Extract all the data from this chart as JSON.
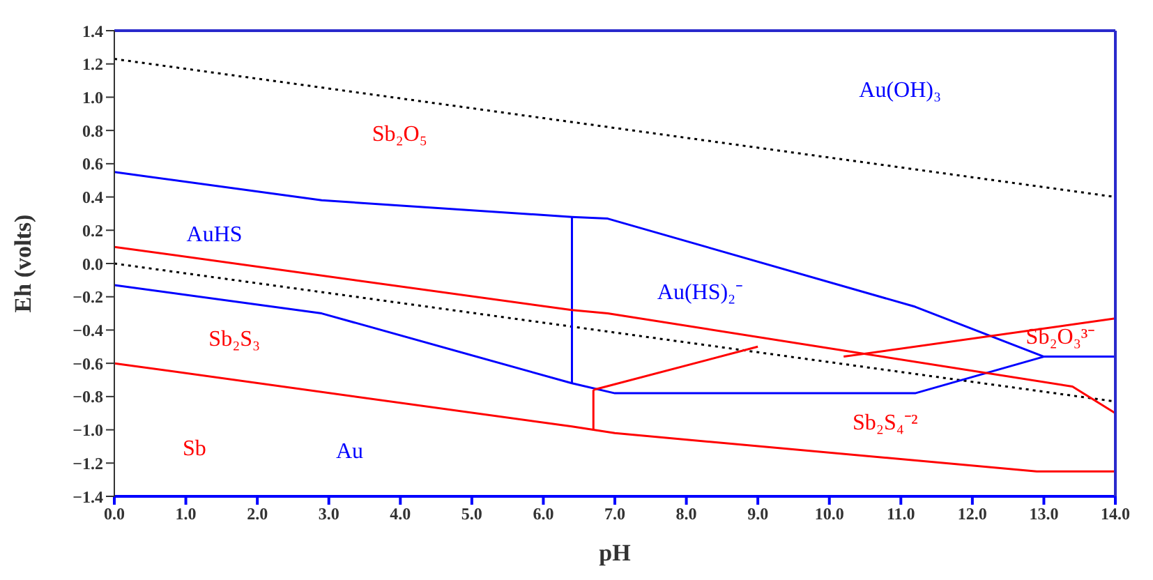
{
  "chart_data": {
    "type": "line",
    "xlabel": "pH",
    "ylabel": "Eh (volts)",
    "xlim": [
      0,
      14
    ],
    "ylim": [
      -1.4,
      1.4
    ],
    "xticks": [
      {
        "value": 0,
        "label": "0.0"
      },
      {
        "value": 1,
        "label": "1.0"
      },
      {
        "value": 2,
        "label": "2.0"
      },
      {
        "value": 3,
        "label": "3.0"
      },
      {
        "value": 4,
        "label": "4.0"
      },
      {
        "value": 5,
        "label": "5.0"
      },
      {
        "value": 6,
        "label": "6.0"
      },
      {
        "value": 7,
        "label": "7.0"
      },
      {
        "value": 8,
        "label": "8.0"
      },
      {
        "value": 9,
        "label": "9.0"
      },
      {
        "value": 10,
        "label": "10.0"
      },
      {
        "value": 11,
        "label": "11.0"
      },
      {
        "value": 12,
        "label": "12.0"
      },
      {
        "value": 13,
        "label": "13.0"
      },
      {
        "value": 14,
        "label": "14.0"
      }
    ],
    "yticks": [
      {
        "value": -1.4,
        "label": "−1.4"
      },
      {
        "value": -1.2,
        "label": "−1.2"
      },
      {
        "value": -1,
        "label": "−1.0"
      },
      {
        "value": -0.8,
        "label": "−0.8"
      },
      {
        "value": -0.6,
        "label": "−0.6"
      },
      {
        "value": -0.4,
        "label": "−0.4"
      },
      {
        "value": -0.2,
        "label": "−0.2"
      },
      {
        "value": 0,
        "label": "0.0"
      },
      {
        "value": 0.2,
        "label": "0.2"
      },
      {
        "value": 0.4,
        "label": "0.4"
      },
      {
        "value": 0.6,
        "label": "0.6"
      },
      {
        "value": 0.8,
        "label": "0.8"
      },
      {
        "value": 1,
        "label": "1.0"
      },
      {
        "value": 1.2,
        "label": "1.2"
      },
      {
        "value": 1.4,
        "label": "1.4"
      }
    ],
    "marker": "none",
    "series": [
      {
        "color": "#000000",
        "line_style": "dotted",
        "x": [
          0,
          14
        ],
        "values": [
          1.23,
          0.4
        ]
      },
      {
        "color": "#000000",
        "line_style": "dotted",
        "x": [
          0,
          14
        ],
        "values": [
          0,
          -0.83
        ]
      },
      {
        "color": "#0000ff",
        "x": [
          0,
          2.9,
          6.4,
          6.9,
          11.2,
          13,
          14
        ],
        "values": [
          0.55,
          0.38,
          0.28,
          0.27,
          -0.26,
          -0.56,
          -0.56
        ]
      },
      {
        "color": "#0000ff",
        "x": [
          6.4,
          6.4
        ],
        "values": [
          0.28,
          -0.72
        ]
      },
      {
        "color": "#0000ff",
        "x": [
          0,
          2.9,
          6.4,
          7,
          11.2,
          13
        ],
        "values": [
          -0.13,
          -0.3,
          -0.72,
          -0.78,
          -0.78,
          -0.56
        ]
      },
      {
        "color": "#ff0000",
        "x": [
          0,
          6.4,
          6.9,
          13.4,
          14
        ],
        "values": [
          0.1,
          -0.28,
          -0.3,
          -0.74,
          -0.9
        ]
      },
      {
        "color": "#ff0000",
        "x": [
          6.7,
          9
        ],
        "values": [
          -0.76,
          -0.5
        ]
      },
      {
        "color": "#ff0000",
        "x": [
          10.2,
          14
        ],
        "values": [
          -0.56,
          -0.33
        ]
      },
      {
        "color": "#ff0000",
        "x": [
          6.7,
          6.7
        ],
        "values": [
          -0.76,
          -1
        ]
      },
      {
        "color": "#ff0000",
        "x": [
          0,
          6.4,
          7,
          12.9,
          14
        ],
        "values": [
          -0.6,
          -0.98,
          -1.02,
          -1.25,
          -1.25
        ]
      }
    ],
    "annotations": [
      "Sb₂O₅",
      "Au(OH)₃",
      "AuHS",
      "Au(HS)₂⁻",
      "Sb₂S₃",
      "Sb₂O₃³⁻",
      "Sb₂S₄⁻²",
      "Sb",
      "Au"
    ]
  }
}
